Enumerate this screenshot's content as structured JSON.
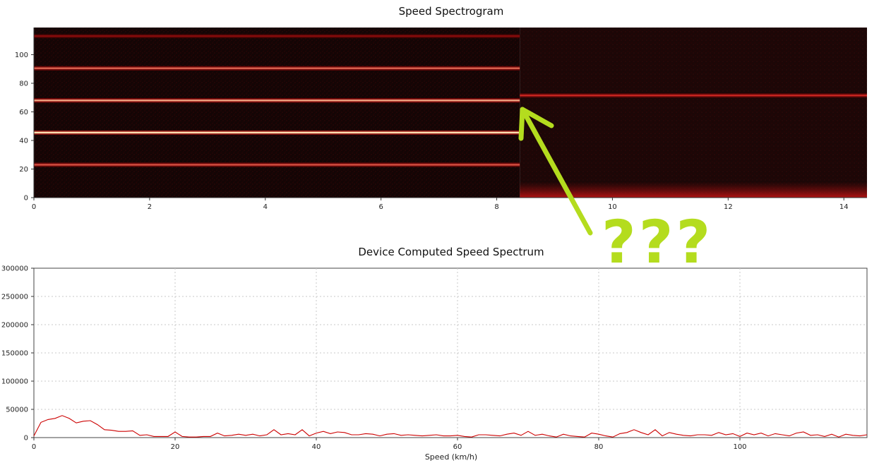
{
  "annotation": {
    "text": "???",
    "color": "#b4dc1e"
  },
  "chart_data": [
    {
      "type": "heatmap",
      "title": "Speed Spectrogram",
      "xlabel": "",
      "ylabel": "",
      "xlim": [
        0,
        14.4
      ],
      "ylim": [
        0,
        119
      ],
      "xticks": [
        0,
        2,
        4,
        6,
        8,
        10,
        12,
        14
      ],
      "yticks": [
        0,
        20,
        40,
        60,
        80,
        100
      ],
      "colormap": [
        "#0a0000",
        "#c01010",
        "#ffe0b0"
      ],
      "background_before": "#140505",
      "background_after": "#1c0707",
      "segments": [
        {
          "x_start": 0,
          "x_end": 8.4,
          "bands": [
            {
              "y": 23,
              "intensity": 0.65
            },
            {
              "y": 45.5,
              "intensity": 1.0
            },
            {
              "y": 68,
              "intensity": 0.85
            },
            {
              "y": 90.5,
              "intensity": 0.7
            },
            {
              "y": 113,
              "intensity": 0.35
            }
          ]
        },
        {
          "x_start": 8.4,
          "x_end": 14.4,
          "bands": [
            {
              "y": 71.5,
              "intensity": 0.55
            },
            {
              "y": 4,
              "intensity": 0.55
            }
          ]
        }
      ]
    },
    {
      "type": "line",
      "title": "Device Computed Speed Spectrum",
      "xlabel": "Speed (km/h)",
      "ylabel": "",
      "xlim": [
        0,
        118
      ],
      "ylim": [
        0,
        300000
      ],
      "xticks": [
        0,
        20,
        40,
        60,
        80,
        100
      ],
      "yticks": [
        0,
        50000,
        100000,
        150000,
        200000,
        250000,
        300000
      ],
      "grid": true,
      "line_color": "#cc0000",
      "x": [
        0,
        1,
        2,
        3,
        4,
        5,
        6,
        7,
        8,
        9,
        10,
        11,
        12,
        13,
        14,
        15,
        16,
        17,
        18,
        19,
        20,
        21,
        22,
        23,
        24,
        25,
        26,
        27,
        28,
        29,
        30,
        31,
        32,
        33,
        34,
        35,
        36,
        37,
        38,
        39,
        40,
        41,
        42,
        43,
        44,
        45,
        46,
        47,
        48,
        49,
        50,
        51,
        52,
        53,
        54,
        55,
        56,
        57,
        58,
        59,
        60,
        61,
        62,
        63,
        64,
        65,
        66,
        67,
        68,
        69,
        70,
        71,
        72,
        73,
        74,
        75,
        76,
        77,
        78,
        79,
        80,
        81,
        82,
        83,
        84,
        85,
        86,
        87,
        88,
        89,
        90,
        91,
        92,
        93,
        94,
        95,
        96,
        97,
        98,
        99,
        100,
        101,
        102,
        103,
        104,
        105,
        106,
        107,
        108,
        109,
        110,
        111,
        112,
        113,
        114,
        115,
        116,
        117,
        118
      ],
      "y": [
        3000,
        27000,
        32000,
        34000,
        39000,
        34000,
        26000,
        29000,
        30000,
        23000,
        14000,
        13000,
        11000,
        11000,
        12000,
        4000,
        5000,
        2000,
        2000,
        2000,
        10000,
        2000,
        1000,
        1000,
        2000,
        2000,
        8000,
        3000,
        4000,
        6000,
        4000,
        6000,
        3000,
        5000,
        14000,
        5000,
        7000,
        5000,
        14000,
        3000,
        8000,
        11000,
        7000,
        10000,
        9000,
        5000,
        5000,
        7000,
        6000,
        3000,
        6000,
        7000,
        4000,
        5000,
        4000,
        3000,
        4000,
        5000,
        3000,
        3000,
        4000,
        2000,
        1000,
        5000,
        5000,
        4000,
        3000,
        6000,
        8000,
        4000,
        11000,
        4000,
        6000,
        3000,
        1000,
        6000,
        3000,
        2000,
        1000,
        8000,
        6000,
        3000,
        1000,
        7000,
        9000,
        14000,
        9000,
        5000,
        14000,
        3000,
        9000,
        6000,
        4000,
        3000,
        5000,
        5000,
        4000,
        9000,
        5000,
        7000,
        2000,
        8000,
        5000,
        8000,
        3000,
        7000,
        5000,
        3000,
        8000,
        10000,
        4000,
        5000,
        2000,
        6000,
        1000,
        6000,
        4000,
        3000,
        5000
      ]
    }
  ]
}
